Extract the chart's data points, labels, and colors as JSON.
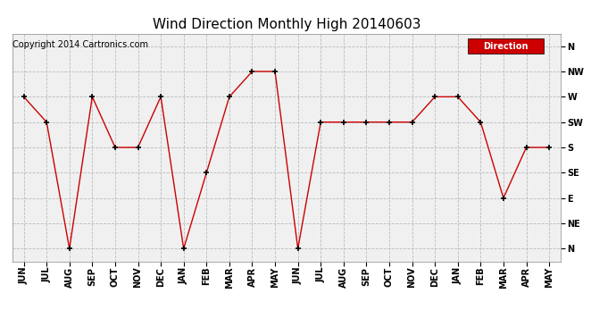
{
  "title": "Wind Direction Monthly High 20140603",
  "copyright": "Copyright 2014 Cartronics.com",
  "legend_label": "Direction",
  "legend_bg": "#cc0000",
  "x_labels": [
    "JUN",
    "JUL",
    "AUG",
    "SEP",
    "OCT",
    "NOV",
    "DEC",
    "JAN",
    "FEB",
    "MAR",
    "APR",
    "MAY",
    "JUN",
    "JUL",
    "AUG",
    "SEP",
    "OCT",
    "NOV",
    "DEC",
    "JAN",
    "FEB",
    "MAR",
    "APR",
    "MAY"
  ],
  "y_labels": [
    "N",
    "NE",
    "E",
    "SE",
    "S",
    "SW",
    "W",
    "NW",
    "N"
  ],
  "y_values": [
    0,
    1,
    2,
    3,
    4,
    5,
    6,
    7,
    8
  ],
  "data_values": [
    6,
    5,
    0,
    6,
    4,
    4,
    6,
    0,
    3,
    6,
    7,
    7,
    0,
    5,
    5,
    5,
    5,
    5,
    6,
    6,
    5,
    2,
    4,
    4
  ],
  "line_color": "#cc0000",
  "marker_color": "#000000",
  "grid_color": "#bbbbbb",
  "bg_color": "#ffffff",
  "plot_bg": "#f0f0f0",
  "title_fontsize": 11,
  "axis_fontsize": 7,
  "copyright_fontsize": 7
}
